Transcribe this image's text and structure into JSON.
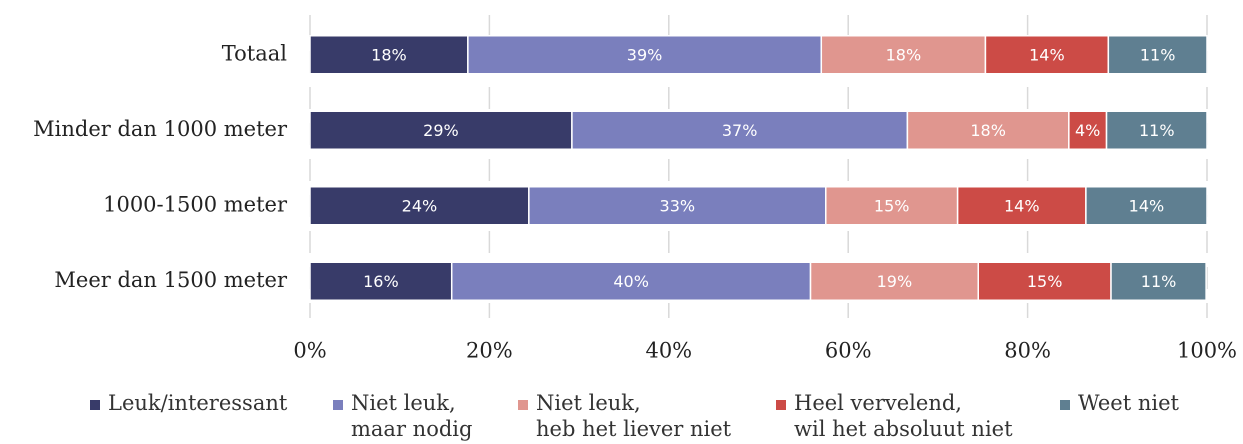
{
  "chart_data": {
    "type": "stacked-barh",
    "categories": [
      "Totaal",
      "Minder dan 1000 meter",
      "1000-1500 meter",
      "Meer dan 1500 meter"
    ],
    "series": [
      {
        "name": "Leuk/interessant",
        "color": "#383b69",
        "values": [
          17.6,
          29.2,
          24.4,
          15.8
        ],
        "value_labels": [
          "18%",
          "29%",
          "24%",
          "16%"
        ]
      },
      {
        "name": "Niet leuk,\nmaar nodig",
        "color": "#7a7fbd",
        "values": [
          39.4,
          37.4,
          33.1,
          40.0
        ],
        "value_labels": [
          "39%",
          "37%",
          "33%",
          "40%"
        ]
      },
      {
        "name": "Niet leuk,\nheb het liever niet",
        "color": "#e0968f",
        "values": [
          18.3,
          18.0,
          14.7,
          18.7
        ],
        "value_labels": [
          "18%",
          "18%",
          "15%",
          "19%"
        ]
      },
      {
        "name": "Heel vervelend,\nwil het absoluut niet",
        "color": "#cc4b46",
        "values": [
          13.7,
          4.2,
          14.3,
          14.8
        ],
        "value_labels": [
          "14%",
          "4%",
          "14%",
          "15%"
        ]
      },
      {
        "name": "Weet niet",
        "color": "#5f7f91",
        "values": [
          11.0,
          11.2,
          13.5,
          10.6
        ],
        "value_labels": [
          "11%",
          "11%",
          "14%",
          "11%"
        ]
      }
    ],
    "xlim": [
      0,
      100
    ],
    "xticks": [
      {
        "value": 0,
        "label": "0%"
      },
      {
        "value": 20,
        "label": "20%"
      },
      {
        "value": 40,
        "label": "40%"
      },
      {
        "value": 60,
        "label": "60%"
      },
      {
        "value": 80,
        "label": "80%"
      },
      {
        "value": 100,
        "label": "100%"
      }
    ],
    "grid": true,
    "legend": "bottom"
  }
}
